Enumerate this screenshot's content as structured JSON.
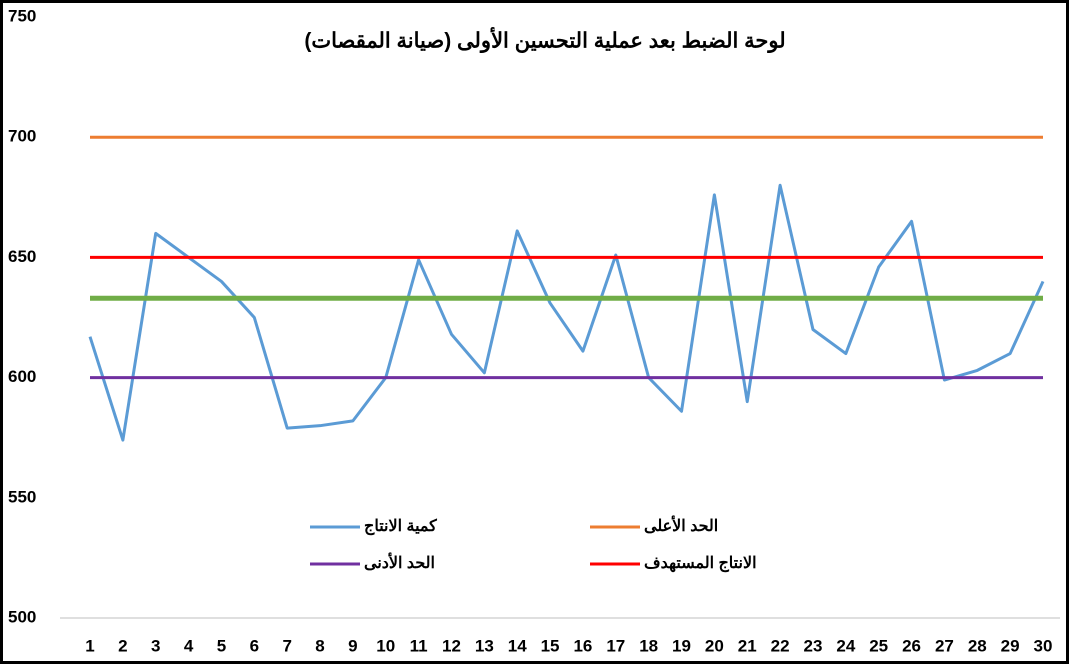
{
  "chart_data": {
    "type": "line",
    "title": "لوحة الضبط بعد عملية التحسين الأولى (صيانة المقصات)",
    "categories": [
      1,
      2,
      3,
      4,
      5,
      6,
      7,
      8,
      9,
      10,
      11,
      12,
      13,
      14,
      15,
      16,
      17,
      18,
      19,
      20,
      21,
      22,
      23,
      24,
      25,
      26,
      27,
      28,
      29,
      30
    ],
    "series": [
      {
        "name": "كمية الانتاج",
        "color": "#5b9bd5",
        "values": [
          617,
          574,
          660,
          650,
          640,
          625,
          579,
          580,
          582,
          600,
          649,
          618,
          602,
          661,
          631,
          611,
          651,
          600,
          586,
          676,
          590,
          680,
          620,
          610,
          646,
          665,
          599,
          603,
          610,
          640
        ]
      },
      {
        "name": "الحد الأعلى",
        "color": "#ed7d31",
        "values": [
          700,
          700,
          700,
          700,
          700,
          700,
          700,
          700,
          700,
          700,
          700,
          700,
          700,
          700,
          700,
          700,
          700,
          700,
          700,
          700,
          700,
          700,
          700,
          700,
          700,
          700,
          700,
          700,
          700,
          700
        ]
      },
      {
        "name": "الحد الأدنى",
        "color": "#7030a0",
        "values": [
          600,
          600,
          600,
          600,
          600,
          600,
          600,
          600,
          600,
          600,
          600,
          600,
          600,
          600,
          600,
          600,
          600,
          600,
          600,
          600,
          600,
          600,
          600,
          600,
          600,
          600,
          600,
          600,
          600,
          600
        ]
      },
      {
        "name": "الانتاج المستهدف",
        "color": "#ff0000",
        "values": [
          650,
          650,
          650,
          650,
          650,
          650,
          650,
          650,
          650,
          650,
          650,
          650,
          650,
          650,
          650,
          650,
          650,
          650,
          650,
          650,
          650,
          650,
          650,
          650,
          650,
          650,
          650,
          650,
          650,
          650
        ]
      },
      {
        "color": "#70ad47",
        "values": [
          633,
          633,
          633,
          633,
          633,
          633,
          633,
          633,
          633,
          633,
          633,
          633,
          633,
          633,
          633,
          633,
          633,
          633,
          633,
          633,
          633,
          633,
          633,
          633,
          633,
          633,
          633,
          633,
          633,
          633
        ]
      }
    ],
    "ylim": [
      500,
      750
    ],
    "yticks": [
      500,
      550,
      600,
      650,
      700,
      750
    ],
    "grid": false
  }
}
